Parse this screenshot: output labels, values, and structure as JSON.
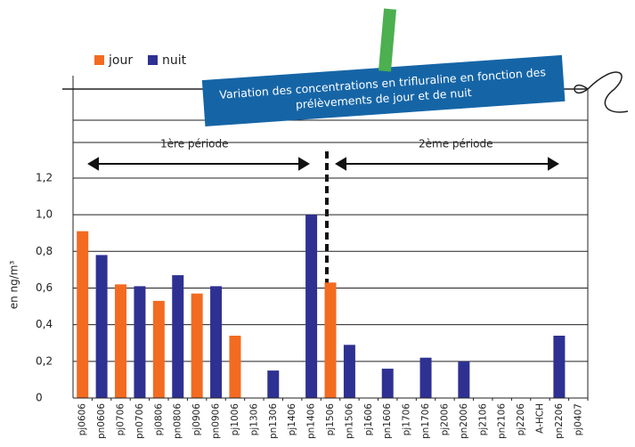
{
  "chart_data": {
    "type": "bar",
    "title": "Variation des concentrations en trifluraline en fonction des prélèvements de jour et de nuit",
    "y_label": "en ng/m³",
    "annotations": [
      "1ère période",
      "2ème période"
    ],
    "categories": [
      "pj0606",
      "pn0606",
      "pj0706",
      "pn0706",
      "pj0806",
      "pn0806",
      "pj0906",
      "pn0906",
      "pj1006",
      "pj1306",
      "pn1306",
      "pj1406",
      "pn1406",
      "pj1506",
      "pn1506",
      "pj1606",
      "pn1606",
      "pj1706",
      "pn1706",
      "pj2006",
      "pn2006",
      "pj2106",
      "pn2106",
      "pj2206",
      "A-HCH",
      "pn2206",
      "pj0407"
    ],
    "series": [
      {
        "name": "jour",
        "color": "#f26b21",
        "values": [
          0.91,
          null,
          0.62,
          null,
          0.53,
          null,
          0.57,
          null,
          0.34,
          null,
          null,
          null,
          null,
          0.63,
          null,
          null,
          null,
          null,
          null,
          null,
          null,
          null,
          null,
          null,
          null,
          null,
          null
        ]
      },
      {
        "name": "nuit",
        "color": "#2e3192",
        "values": [
          null,
          0.78,
          null,
          0.61,
          null,
          0.67,
          null,
          0.61,
          null,
          null,
          0.15,
          null,
          1.0,
          null,
          0.29,
          null,
          0.16,
          null,
          0.22,
          null,
          0.2,
          null,
          null,
          null,
          null,
          0.34,
          null
        ]
      }
    ],
    "ylim": [
      0,
      1.7
    ],
    "yticks": [
      0,
      {
        "value": 0.2,
        "label": "0,2"
      },
      {
        "value": 0.4,
        "label": "0,4"
      },
      {
        "value": 0.6,
        "label": "0,6"
      },
      {
        "value": 0.8,
        "label": "0,8"
      },
      {
        "value": 1.0,
        "label": "1,0"
      },
      {
        "value": 1.2,
        "label": "1,2"
      }
    ],
    "grid": true
  }
}
